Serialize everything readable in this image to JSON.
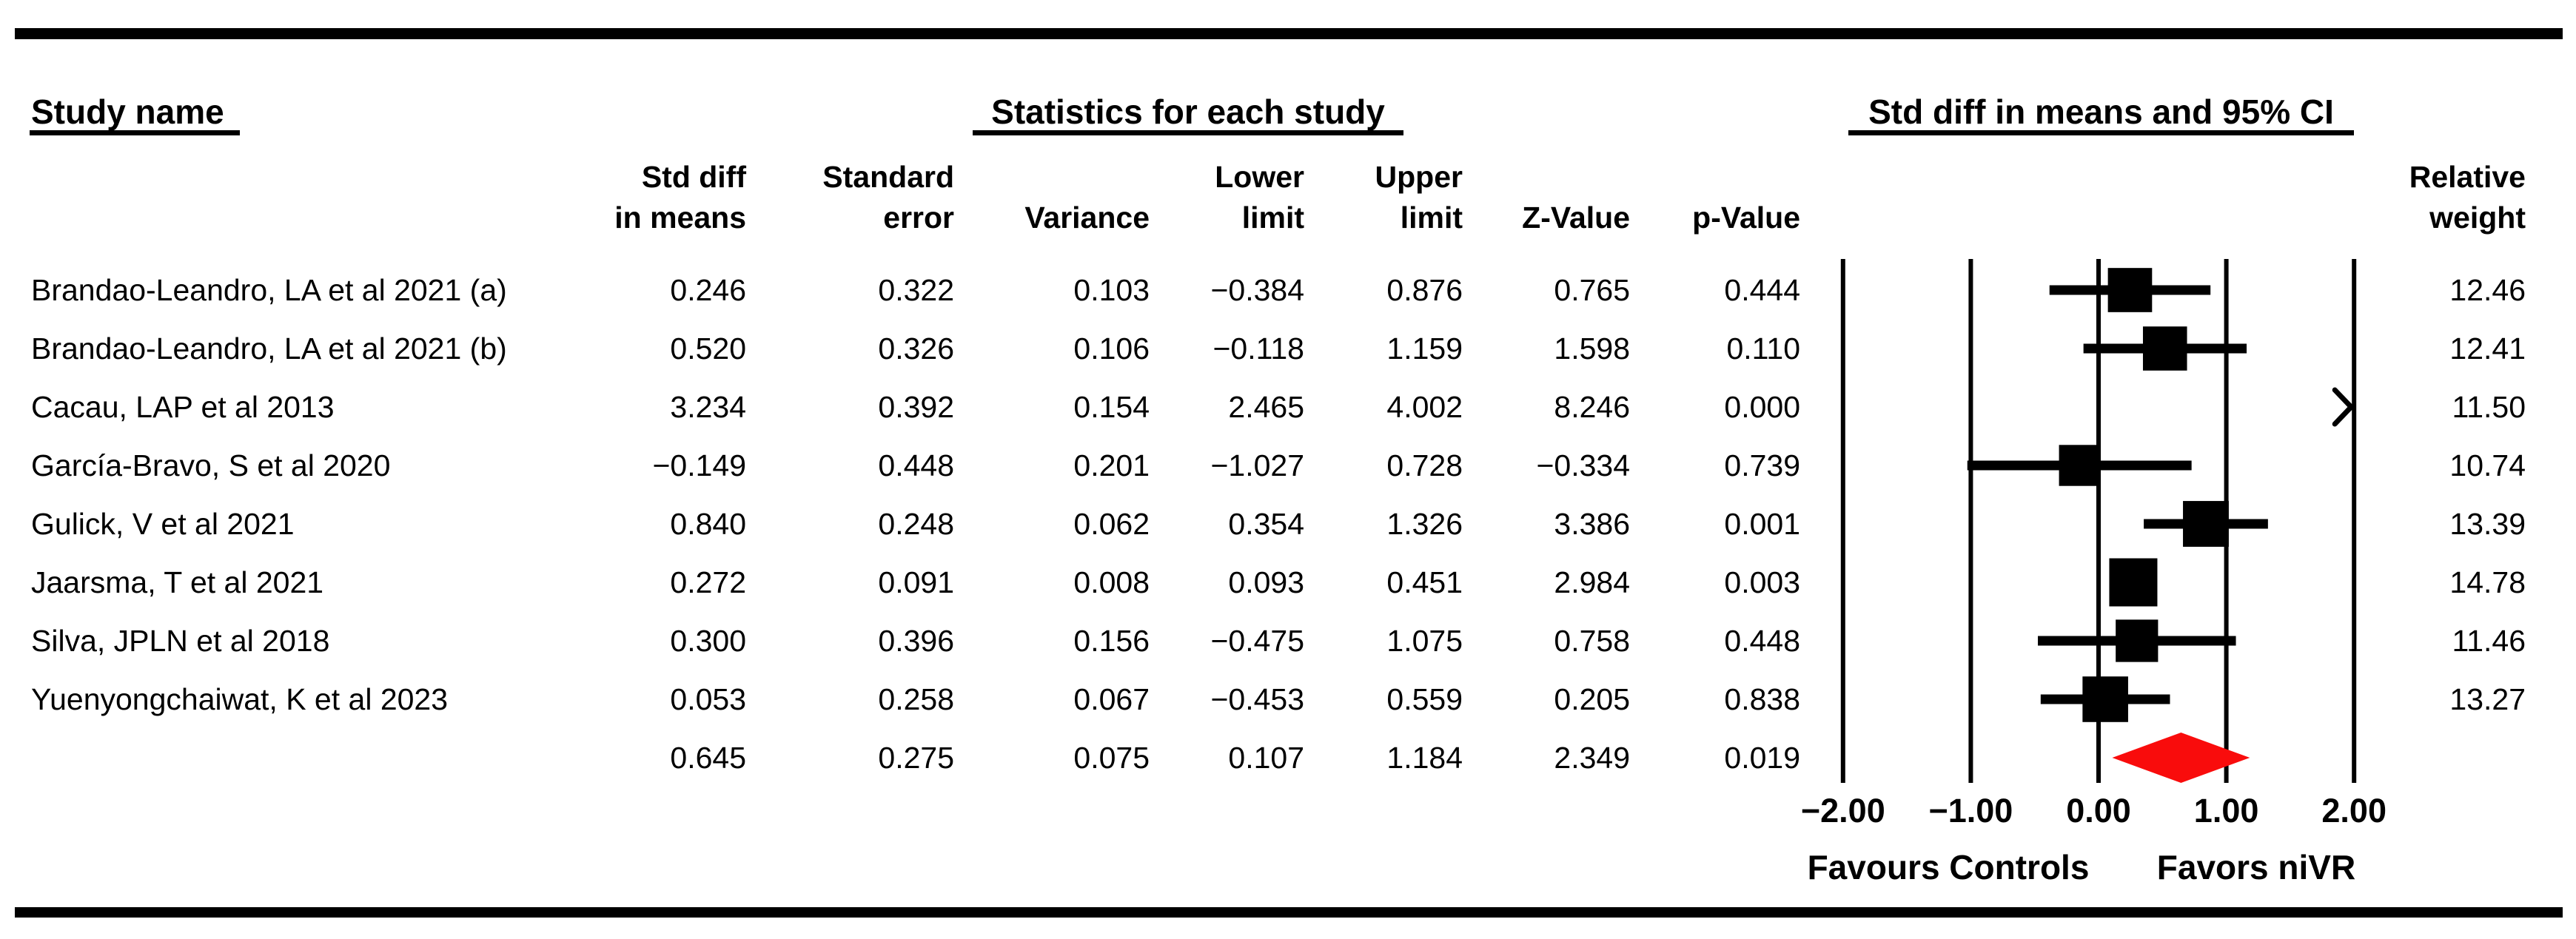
{
  "header": {
    "study_name_label": "Study name",
    "statistics_label": "Statistics for each study",
    "ci_label": "Std diff in means and 95% CI",
    "columns": [
      "Std diff\nin means",
      "Standard\nerror",
      "Variance",
      "Lower\nlimit",
      "Upper\nlimit",
      "Z-Value",
      "p-Value"
    ],
    "relative_weight_label": "Relative\nweight"
  },
  "chart_data": {
    "type": "forest",
    "title": "Std diff in means and 95% CI",
    "xlim": [
      -2,
      2
    ],
    "axis_ticks": [
      -2,
      -1,
      0,
      1,
      2
    ],
    "axis_tick_labels": [
      "−2.00",
      "−1.00",
      "0.00",
      "1.00",
      "2.00"
    ],
    "left_direction_label": "Favours Controls",
    "right_direction_label": "Favors niVR",
    "diamond_color": "#f90c0c",
    "marker_color": "#000000",
    "studies": [
      {
        "name": "Brandao-Leandro, LA et al 2021 (a)",
        "std_diff": 0.246,
        "se": 0.322,
        "variance": 0.103,
        "lower": -0.384,
        "upper": 0.876,
        "z": 0.765,
        "p": 0.444,
        "weight": 12.46,
        "cells": [
          "0.246",
          "0.322",
          "0.103",
          "−0.384",
          "0.876",
          "0.765",
          "0.444"
        ],
        "weight_text": "12.46",
        "offscale_right": false
      },
      {
        "name": "Brandao-Leandro, LA et al 2021 (b)",
        "std_diff": 0.52,
        "se": 0.326,
        "variance": 0.106,
        "lower": -0.118,
        "upper": 1.159,
        "z": 1.598,
        "p": 0.11,
        "weight": 12.41,
        "cells": [
          "0.520",
          "0.326",
          "0.106",
          "−0.118",
          "1.159",
          "1.598",
          "0.110"
        ],
        "weight_text": "12.41",
        "offscale_right": false
      },
      {
        "name": "Cacau, LAP et al 2013",
        "std_diff": 3.234,
        "se": 0.392,
        "variance": 0.154,
        "lower": 2.465,
        "upper": 4.002,
        "z": 8.246,
        "p": 0.0,
        "weight": 11.5,
        "cells": [
          "3.234",
          "0.392",
          "0.154",
          "2.465",
          "4.002",
          "8.246",
          "0.000"
        ],
        "weight_text": "11.50",
        "offscale_right": true
      },
      {
        "name": "García-Bravo, S et al 2020",
        "std_diff": -0.149,
        "se": 0.448,
        "variance": 0.201,
        "lower": -1.027,
        "upper": 0.728,
        "z": -0.334,
        "p": 0.739,
        "weight": 10.74,
        "cells": [
          "−0.149",
          "0.448",
          "0.201",
          "−1.027",
          "0.728",
          "−0.334",
          "0.739"
        ],
        "weight_text": "10.74",
        "offscale_right": false
      },
      {
        "name": "Gulick, V et al 2021",
        "std_diff": 0.84,
        "se": 0.248,
        "variance": 0.062,
        "lower": 0.354,
        "upper": 1.326,
        "z": 3.386,
        "p": 0.001,
        "weight": 13.39,
        "cells": [
          "0.840",
          "0.248",
          "0.062",
          "0.354",
          "1.326",
          "3.386",
          "0.001"
        ],
        "weight_text": "13.39",
        "offscale_right": false
      },
      {
        "name": "Jaarsma, T et al 2021",
        "std_diff": 0.272,
        "se": 0.091,
        "variance": 0.008,
        "lower": 0.093,
        "upper": 0.451,
        "z": 2.984,
        "p": 0.003,
        "weight": 14.78,
        "cells": [
          "0.272",
          "0.091",
          "0.008",
          "0.093",
          "0.451",
          "2.984",
          "0.003"
        ],
        "weight_text": "14.78",
        "offscale_right": false
      },
      {
        "name": "Silva, JPLN et al 2018",
        "std_diff": 0.3,
        "se": 0.396,
        "variance": 0.156,
        "lower": -0.475,
        "upper": 1.075,
        "z": 0.758,
        "p": 0.448,
        "weight": 11.46,
        "cells": [
          "0.300",
          "0.396",
          "0.156",
          "−0.475",
          "1.075",
          "0.758",
          "0.448"
        ],
        "weight_text": "11.46",
        "offscale_right": false
      },
      {
        "name": "Yuenyongchaiwat, K et al 2023",
        "std_diff": 0.053,
        "se": 0.258,
        "variance": 0.067,
        "lower": -0.453,
        "upper": 0.559,
        "z": 0.205,
        "p": 0.838,
        "weight": 13.27,
        "cells": [
          "0.053",
          "0.258",
          "0.067",
          "−0.453",
          "0.559",
          "0.205",
          "0.838"
        ],
        "weight_text": "13.27",
        "offscale_right": false
      }
    ],
    "overall": {
      "std_diff": 0.645,
      "se": 0.275,
      "variance": 0.075,
      "lower": 0.107,
      "upper": 1.184,
      "z": 2.349,
      "p": 0.019,
      "cells": [
        "0.645",
        "0.275",
        "0.075",
        "0.107",
        "1.184",
        "2.349",
        "0.019"
      ]
    }
  }
}
